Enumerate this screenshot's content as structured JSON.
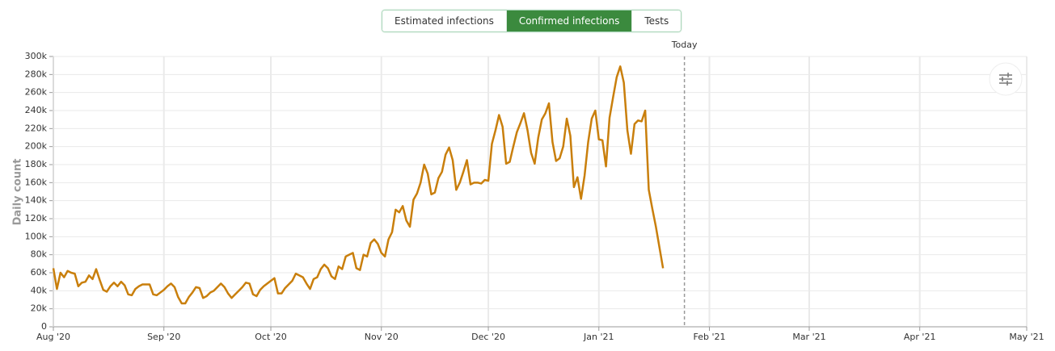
{
  "tabs": {
    "items": [
      "Estimated infections",
      "Confirmed infections",
      "Tests"
    ],
    "active": 1
  },
  "chart_data": {
    "type": "line",
    "y_label": "Daily count",
    "grid": true,
    "series": [
      {
        "name": "Confirmed infections",
        "color": "#c97f0c",
        "values": [
          65,
          42,
          60,
          55,
          62,
          60,
          59,
          45,
          49,
          50,
          57,
          53,
          64,
          52,
          41,
          39,
          45,
          49,
          45,
          50,
          46,
          36,
          35,
          42,
          45,
          47,
          47,
          47,
          36,
          35,
          38,
          41,
          45,
          48,
          44,
          33,
          26,
          26,
          33,
          38,
          44,
          43,
          32,
          34,
          38,
          40,
          44,
          48,
          44,
          37,
          32,
          36,
          40,
          44,
          49,
          48,
          36,
          34,
          41,
          45,
          48,
          51,
          54,
          37,
          37,
          43,
          47,
          51,
          59,
          57,
          55,
          48,
          42,
          53,
          55,
          64,
          69,
          65,
          56,
          53,
          67,
          64,
          78,
          80,
          82,
          65,
          63,
          80,
          78,
          93,
          97,
          92,
          82,
          78,
          97,
          105,
          130,
          127,
          134,
          118,
          111,
          141,
          148,
          160,
          180,
          170,
          147,
          149,
          165,
          172,
          191,
          199,
          185,
          152,
          160,
          172,
          185,
          158,
          160,
          160,
          159,
          163,
          162,
          203,
          218,
          235,
          222,
          181,
          183,
          200,
          216,
          226,
          237,
          218,
          193,
          181,
          210,
          230,
          237,
          248,
          205,
          184,
          187,
          200,
          231,
          212,
          155,
          166,
          142,
          168,
          205,
          231,
          240,
          208,
          207,
          178,
          232,
          255,
          277,
          289,
          271,
          218,
          192,
          225,
          229,
          228,
          240,
          152,
          131,
          111,
          88,
          65
        ]
      }
    ],
    "xlim": [
      0,
      273
    ],
    "xticks": [
      {
        "value": 0,
        "label": "Aug '20"
      },
      {
        "value": 31,
        "label": "Sep '20"
      },
      {
        "value": 61,
        "label": "Oct '20"
      },
      {
        "value": 92,
        "label": "Nov '20"
      },
      {
        "value": 122,
        "label": "Dec '20"
      },
      {
        "value": 153,
        "label": "Jan '21"
      },
      {
        "value": 184,
        "label": "Feb '21"
      },
      {
        "value": 212,
        "label": "Mar '21"
      },
      {
        "value": 243,
        "label": "Apr '21"
      },
      {
        "value": 273,
        "label": "May '21"
      }
    ],
    "ylim": [
      0,
      300
    ],
    "yticks": [
      0,
      {
        "value": 20,
        "label": "20k"
      },
      {
        "value": 40,
        "label": "40k"
      },
      {
        "value": 60,
        "label": "60k"
      },
      {
        "value": 80,
        "label": "80k"
      },
      {
        "value": 100,
        "label": "100k"
      },
      {
        "value": 120,
        "label": "120k"
      },
      {
        "value": 140,
        "label": "140k"
      },
      {
        "value": 160,
        "label": "160k"
      },
      {
        "value": 180,
        "label": "180k"
      },
      {
        "value": 200,
        "label": "200k"
      },
      {
        "value": 220,
        "label": "220k"
      },
      {
        "value": 240,
        "label": "240k"
      },
      {
        "value": 260,
        "label": "260k"
      },
      {
        "value": 280,
        "label": "280k"
      },
      {
        "value": 300,
        "label": "300k"
      }
    ],
    "today": {
      "value": 177,
      "label": "Today"
    }
  }
}
